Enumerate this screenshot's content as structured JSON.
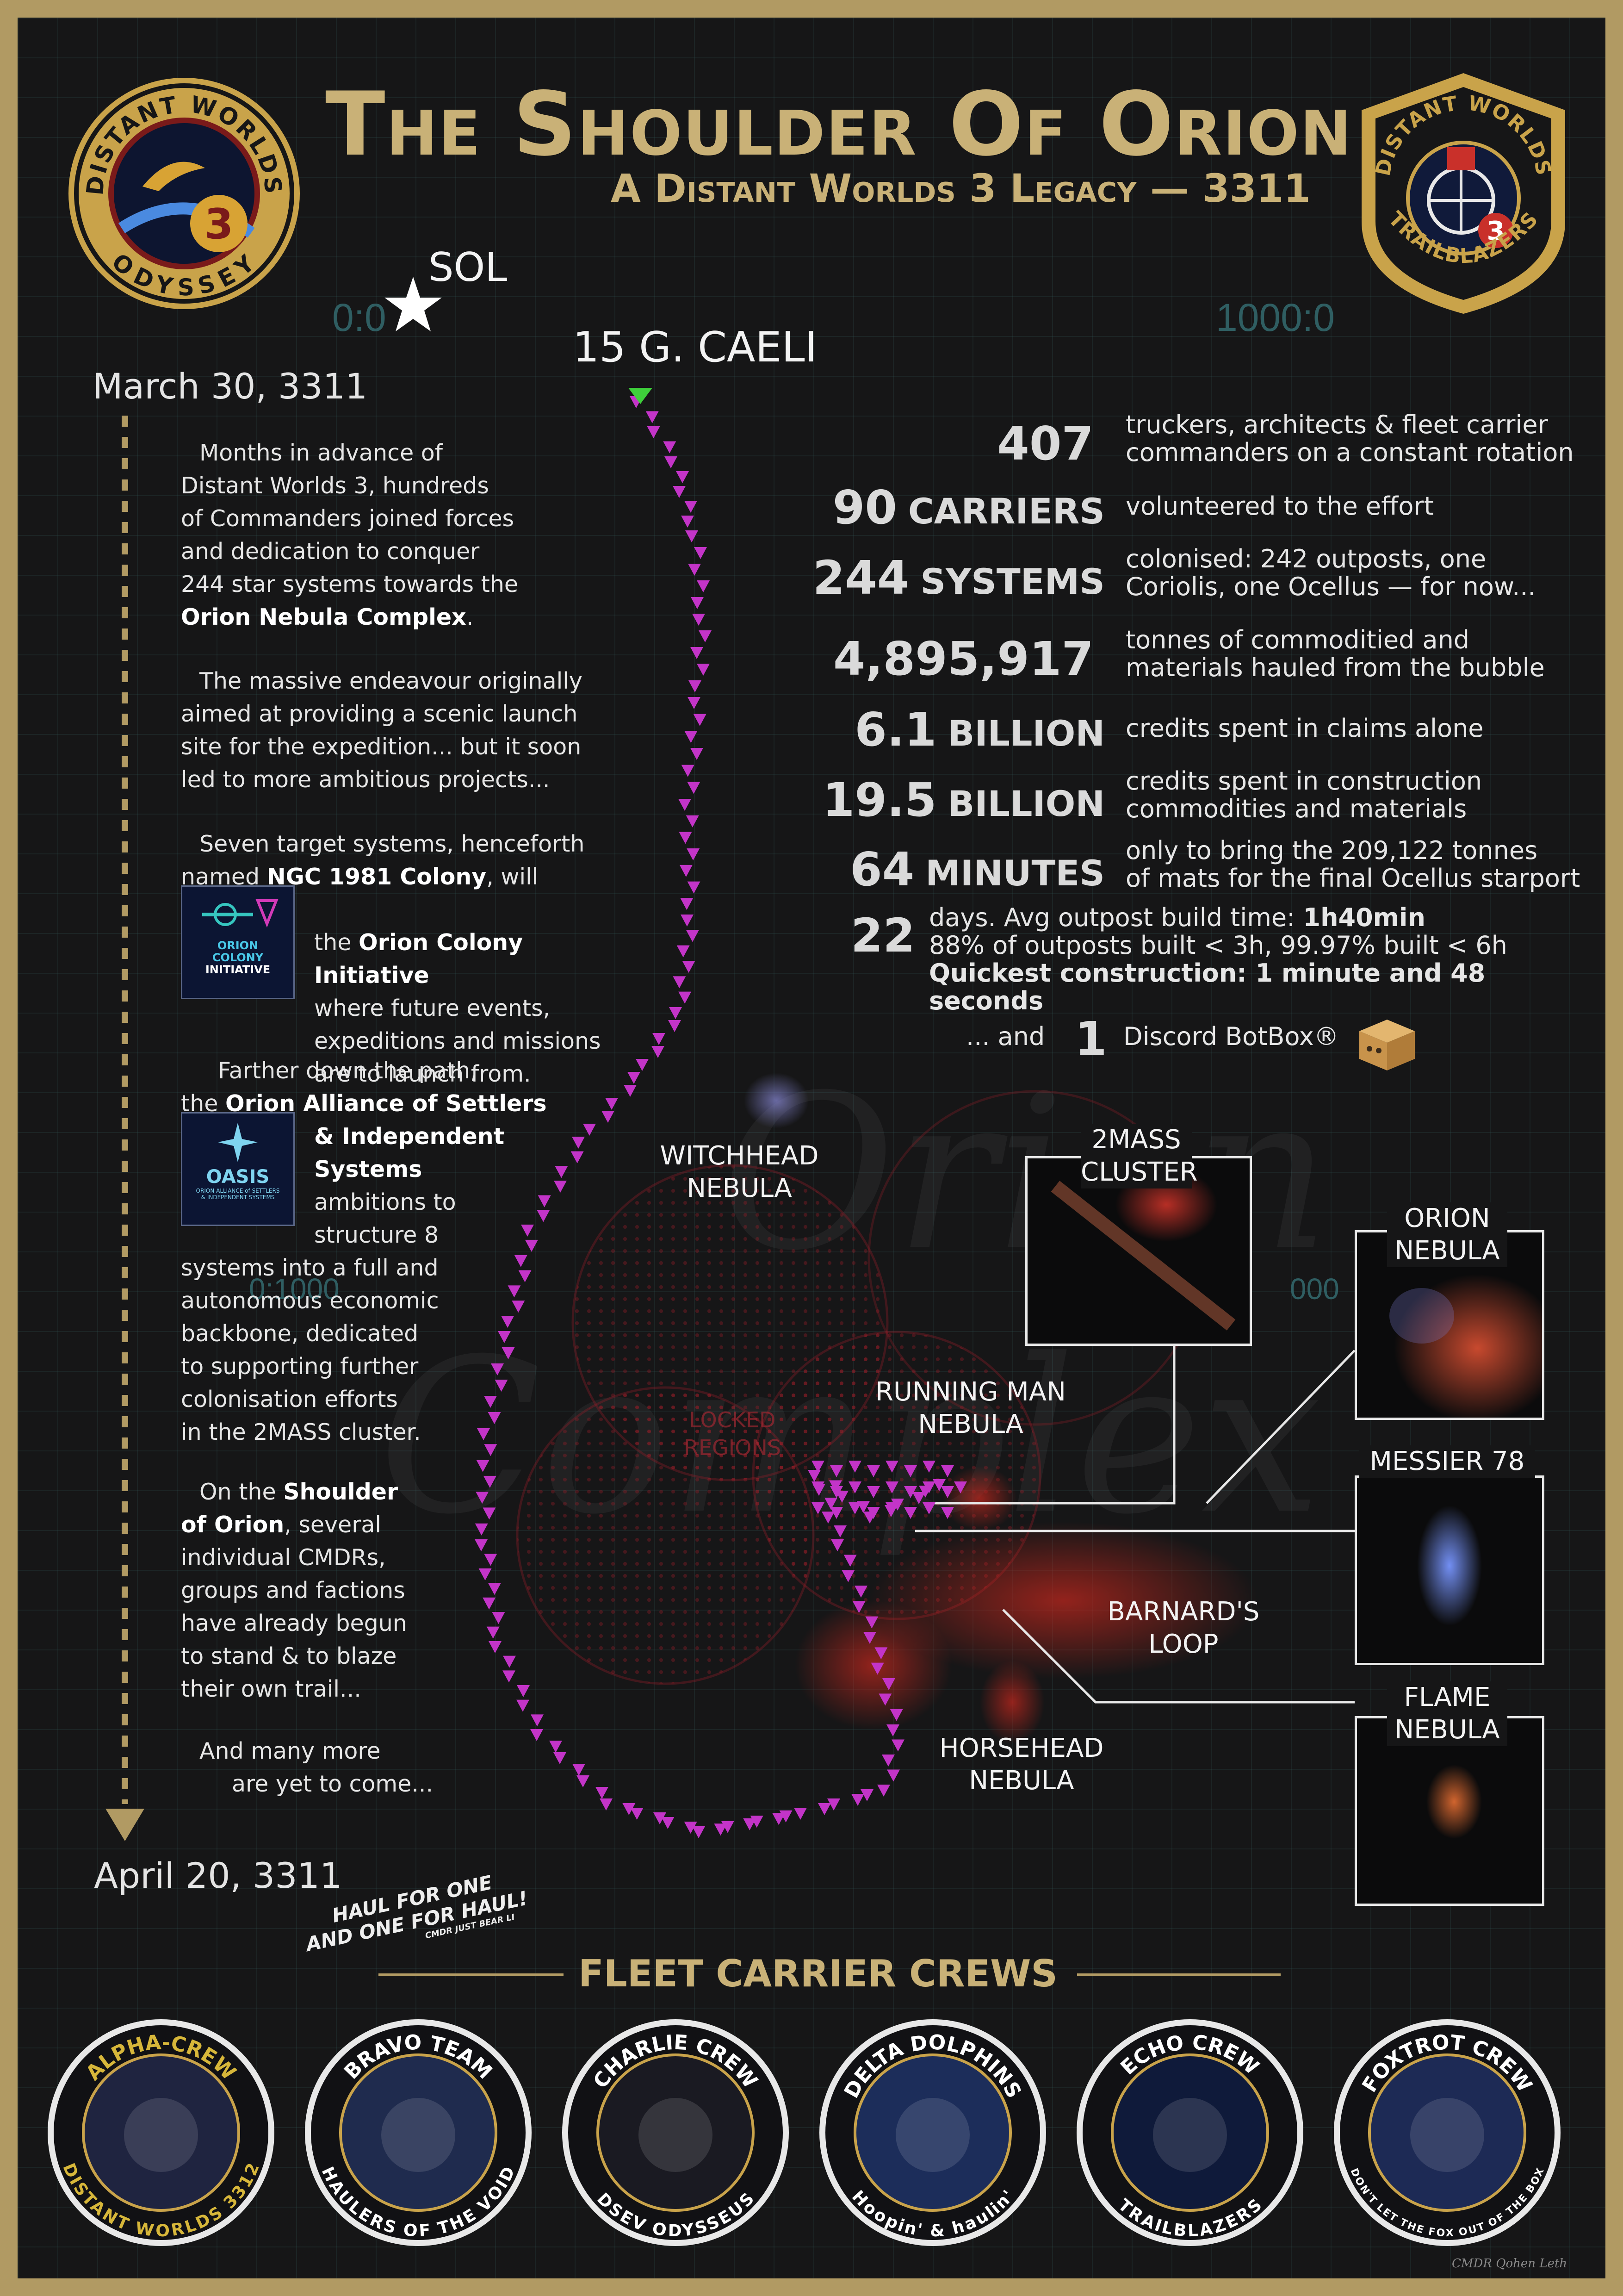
{
  "header": {
    "title": "The Shoulder Of Orion",
    "subtitle": "A Distant Worlds 3 Legacy — 3311",
    "left_emblem": {
      "top_text": "DISTANT WORLDS",
      "bottom_text": "ODYSSEY",
      "number": "3"
    },
    "right_emblem": {
      "top_text": "DISTANT WORLDS",
      "bottom_text": "TRAILBLAZERS",
      "number": "3"
    }
  },
  "map": {
    "sol_label": "SOL",
    "start_label": "15 G. CAELI",
    "coord_left": "0:0",
    "coord_right": "1000:0",
    "coord_mid_left": "0:1000",
    "coord_mid_right": "000",
    "locked_label_1": "LOCKED",
    "locked_label_2": "REGIONS",
    "watermark_1": "Orion",
    "watermark_2": "Complex",
    "route_color": "#c334c8",
    "start_color": "#3ecf3b",
    "labels": {
      "witchhead": [
        "WITCHHEAD",
        "NEBULA"
      ],
      "running_man": [
        "RUNNING MAN",
        "NEBULA"
      ],
      "barnards": [
        "BARNARD'S",
        "LOOP"
      ],
      "horsehead": [
        "HORSEHEAD",
        "NEBULA"
      ],
      "twomass": [
        "2MASS",
        "CLUSTER"
      ],
      "orion": [
        "ORION",
        "NEBULA"
      ],
      "messier": [
        "MESSIER 78"
      ],
      "flame": [
        "FLAME",
        "NEBULA"
      ]
    }
  },
  "timeline": {
    "start_date": "March 30, 3311",
    "end_date": "April 20, 3311"
  },
  "story": {
    "p1": [
      "Months in advance of",
      "Distant Worlds 3, hundreds",
      "of Commanders joined forces",
      "and dedication to conquer",
      "244 star systems towards the"
    ],
    "p1_bold": "Orion Nebula Complex",
    "p2": [
      "The massive endeavour originally",
      "aimed at providing a scenic launch",
      "site for the expedition... but it soon",
      "led to more ambitious projects..."
    ],
    "p3_a": "Seven target systems, henceforth",
    "p3_b_pre": "named ",
    "p3_b_bold": "NGC 1981 Colony",
    "p3_b_post": ", will welcome",
    "p3_c_pre": "the ",
    "p3_c_bold": "Orion Colony Initiative",
    "p3_rest": [
      "where future events,",
      "expeditions and missions",
      "are to launch from."
    ],
    "oci_logo": [
      "ORION",
      "COLONY",
      "INITIATIVE"
    ],
    "p4_a": "Farther down the path,",
    "p4_b_pre": "the ",
    "p4_b_bold": "Orion Alliance of Settlers",
    "p4_c_bold": "& Independent",
    "p4_d_bold": "Systems",
    "p4_rest_short": [
      "ambitions to",
      "structure 8"
    ],
    "p4_rest": [
      "systems into a full and",
      "autonomous economic",
      "backbone, dedicated",
      "to supporting further",
      "colonisation efforts",
      "in the 2MASS cluster."
    ],
    "oasis_logo": [
      "OASIS",
      "ORION ALLIANCE of SETTLERS",
      "& INDEPENDENT SYSTEMS"
    ],
    "p5_a_pre": "On the ",
    "p5_a_bold": "Shoulder",
    "p5_b_bold": "of Orion",
    "p5_b_post": ", several",
    "p5_rest": [
      "individual CMDRs,",
      "groups and factions",
      "have already begun",
      "to stand & to blaze",
      "their own trail..."
    ],
    "p6": [
      "And many more",
      "are yet to come..."
    ]
  },
  "stats": [
    {
      "num": "407",
      "unit": "",
      "desc": [
        "truckers, architects & fleet carrier",
        "commanders on a constant rotation"
      ]
    },
    {
      "num": "90",
      "unit": "CARRIERS",
      "desc": [
        "volunteered to the effort"
      ]
    },
    {
      "num": "244",
      "unit": "SYSTEMS",
      "desc": [
        "colonised: 242 outposts, one",
        "Coriolis, one Ocellus — for now..."
      ]
    },
    {
      "num": "4,895,917",
      "unit": "",
      "desc": [
        "tonnes of commoditied and",
        "materials hauled from the bubble"
      ]
    },
    {
      "num": "6.1",
      "unit": "BILLION",
      "desc": [
        "credits spent in claims alone"
      ]
    },
    {
      "num": "19.5",
      "unit": "BILLION",
      "desc": [
        "credits spent in construction",
        "commodities and materials"
      ]
    },
    {
      "num": "64",
      "unit": "MINUTES",
      "desc": [
        "only to bring the 209,122 tonnes",
        "of mats for the final Ocellus starport"
      ]
    }
  ],
  "stat_days": {
    "num": "22",
    "line1_pre": "days. Avg outpost build time: ",
    "line1_bold": "1h40min",
    "line2": "88% of outposts built < 3h, 99.97% built < 6h",
    "line3": "Quickest construction: 1 minute and 48 seconds"
  },
  "stat_botbox": {
    "pre": "... and",
    "num": "1",
    "desc": "Discord BotBox®"
  },
  "fleet": {
    "slogan_1": "HAUL FOR ONE",
    "slogan_2": "AND ONE FOR HAUL!",
    "slogan_credit": "CMDR JUST BEAR LI",
    "heading": "FLEET CARRIER CREWS",
    "crews": [
      {
        "top": "ALPHA-CREW",
        "bottom": "DISTANT WORLDS 3312",
        "color": "#d7b73a",
        "bg": "#1f2440"
      },
      {
        "top": "BRAVO TEAM",
        "bottom": "HAULERS OF THE VOID",
        "color": "#ffffff",
        "bg": "#1f2b4e"
      },
      {
        "top": "CHARLIE CREW",
        "bottom": "DSEV ODYSSEUS",
        "color": "#ffffff",
        "bg": "#1a1a22"
      },
      {
        "top": "DELTA DOLPHINS",
        "bottom": "Hoopin' & haulin'",
        "color": "#ffffff",
        "bg": "#1c2d5a"
      },
      {
        "top": "ECHO CREW",
        "bottom": "TRAILBLAZERS",
        "color": "#ffffff",
        "bg": "#0f1a3a"
      },
      {
        "top": "FOXTROT CREW",
        "bottom": "DON'T LET THE FOX OUT OF THE BOX",
        "color": "#ffffff",
        "bg": "#1d2a55"
      }
    ]
  },
  "footer_credit": "CMDR Qohen Leth"
}
